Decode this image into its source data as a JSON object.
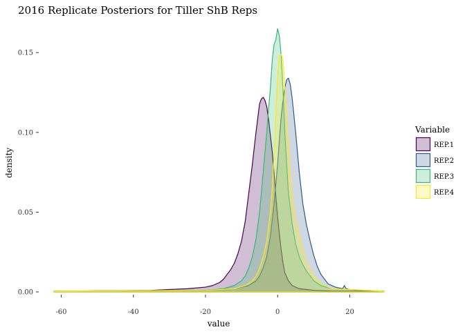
{
  "chart_data": {
    "type": "area",
    "title": "2016 Replicate Posteriors for Tiller ShB Reps",
    "xlabel": "value",
    "ylabel": "density",
    "xlim": [
      -62,
      29.5
    ],
    "ylim": [
      0,
      0.17
    ],
    "x_ticks": [
      -60,
      -40,
      -20,
      0,
      20
    ],
    "x_tick_labels": [
      "-60",
      "-40",
      "-20",
      "0",
      "20"
    ],
    "y_ticks": [
      0.0,
      0.05,
      0.1,
      0.15
    ],
    "y_tick_labels": [
      "0.00",
      "0.05",
      "0.10",
      "0.15"
    ],
    "grid": false,
    "legend": {
      "title": "Variable",
      "position": "right"
    },
    "series": [
      {
        "name": "REP.1",
        "line_color": "#440154",
        "fill_color": "#440154",
        "fill_opacity": 0.25,
        "x": [
          -62,
          -35,
          -30,
          -25,
          -20,
          -18,
          -16,
          -15,
          -14,
          -13,
          -12,
          -11,
          -10,
          -9,
          -8,
          -7,
          -6,
          -5,
          -4.5,
          -4,
          -3.5,
          -3,
          -2.5,
          -2,
          -1.5,
          -1,
          -0.5,
          0,
          0.5,
          1,
          1.5,
          2,
          3,
          4,
          5,
          6,
          8,
          10,
          15,
          29.5
        ],
        "y": [
          0.0005,
          0.001,
          0.0015,
          0.002,
          0.003,
          0.004,
          0.006,
          0.008,
          0.011,
          0.014,
          0.018,
          0.024,
          0.032,
          0.044,
          0.062,
          0.08,
          0.1,
          0.118,
          0.121,
          0.122,
          0.12,
          0.116,
          0.108,
          0.098,
          0.088,
          0.075,
          0.06,
          0.047,
          0.036,
          0.026,
          0.018,
          0.012,
          0.007,
          0.004,
          0.003,
          0.002,
          0.0015,
          0.001,
          0.0005,
          0.0005
        ]
      },
      {
        "name": "REP.2",
        "line_color": "#2C5A8B",
        "fill_color": "#3B5E8C",
        "fill_opacity": 0.25,
        "x": [
          -62,
          -20,
          -12,
          -8,
          -6,
          -5,
          -4,
          -3,
          -2,
          -1,
          0,
          0.5,
          1,
          1.5,
          2,
          2.5,
          3,
          3.5,
          4,
          5,
          6,
          7,
          8,
          9,
          10,
          11,
          12,
          13,
          14,
          16,
          18,
          18.5,
          19,
          20,
          22,
          29.5
        ],
        "y": [
          0.0005,
          0.001,
          0.002,
          0.004,
          0.007,
          0.01,
          0.015,
          0.022,
          0.035,
          0.055,
          0.08,
          0.096,
          0.11,
          0.12,
          0.128,
          0.133,
          0.134,
          0.13,
          0.122,
          0.1,
          0.075,
          0.055,
          0.042,
          0.032,
          0.023,
          0.016,
          0.011,
          0.008,
          0.005,
          0.003,
          0.002,
          0.004,
          0.002,
          0.0015,
          0.001,
          0.0005
        ]
      },
      {
        "name": "REP.3",
        "line_color": "#35B779",
        "fill_color": "#3CBB75",
        "fill_opacity": 0.25,
        "x": [
          -62,
          -20,
          -15,
          -12,
          -10,
          -9,
          -8,
          -7,
          -6,
          -5,
          -4,
          -3,
          -2.5,
          -2,
          -1.5,
          -1,
          -0.5,
          0,
          0.5,
          1,
          1.5,
          2,
          2.5,
          3,
          4,
          5,
          6,
          7,
          8,
          10,
          12,
          15,
          29.5
        ],
        "y": [
          0.0005,
          0.001,
          0.002,
          0.004,
          0.007,
          0.01,
          0.015,
          0.022,
          0.033,
          0.05,
          0.075,
          0.1,
          0.115,
          0.128,
          0.145,
          0.155,
          0.158,
          0.165,
          0.16,
          0.148,
          0.126,
          0.1,
          0.08,
          0.062,
          0.043,
          0.03,
          0.022,
          0.017,
          0.013,
          0.007,
          0.004,
          0.002,
          0.0005
        ]
      },
      {
        "name": "REP.4",
        "line_color": "#FDE725",
        "fill_color": "#FDE725",
        "fill_opacity": 0.25,
        "x": [
          -62,
          -20,
          -12,
          -9,
          -7,
          -6,
          -5,
          -4,
          -3,
          -2,
          -1.5,
          -1,
          -0.5,
          0,
          0.5,
          1,
          1.5,
          2,
          2.5,
          3,
          3.5,
          4,
          5,
          6,
          7,
          8,
          10,
          12,
          15,
          29.5
        ],
        "y": [
          0.0005,
          0.001,
          0.002,
          0.004,
          0.007,
          0.01,
          0.015,
          0.022,
          0.032,
          0.05,
          0.065,
          0.085,
          0.11,
          0.135,
          0.148,
          0.149,
          0.145,
          0.128,
          0.11,
          0.09,
          0.072,
          0.06,
          0.045,
          0.035,
          0.026,
          0.018,
          0.01,
          0.005,
          0.002,
          0.0005
        ]
      }
    ]
  }
}
